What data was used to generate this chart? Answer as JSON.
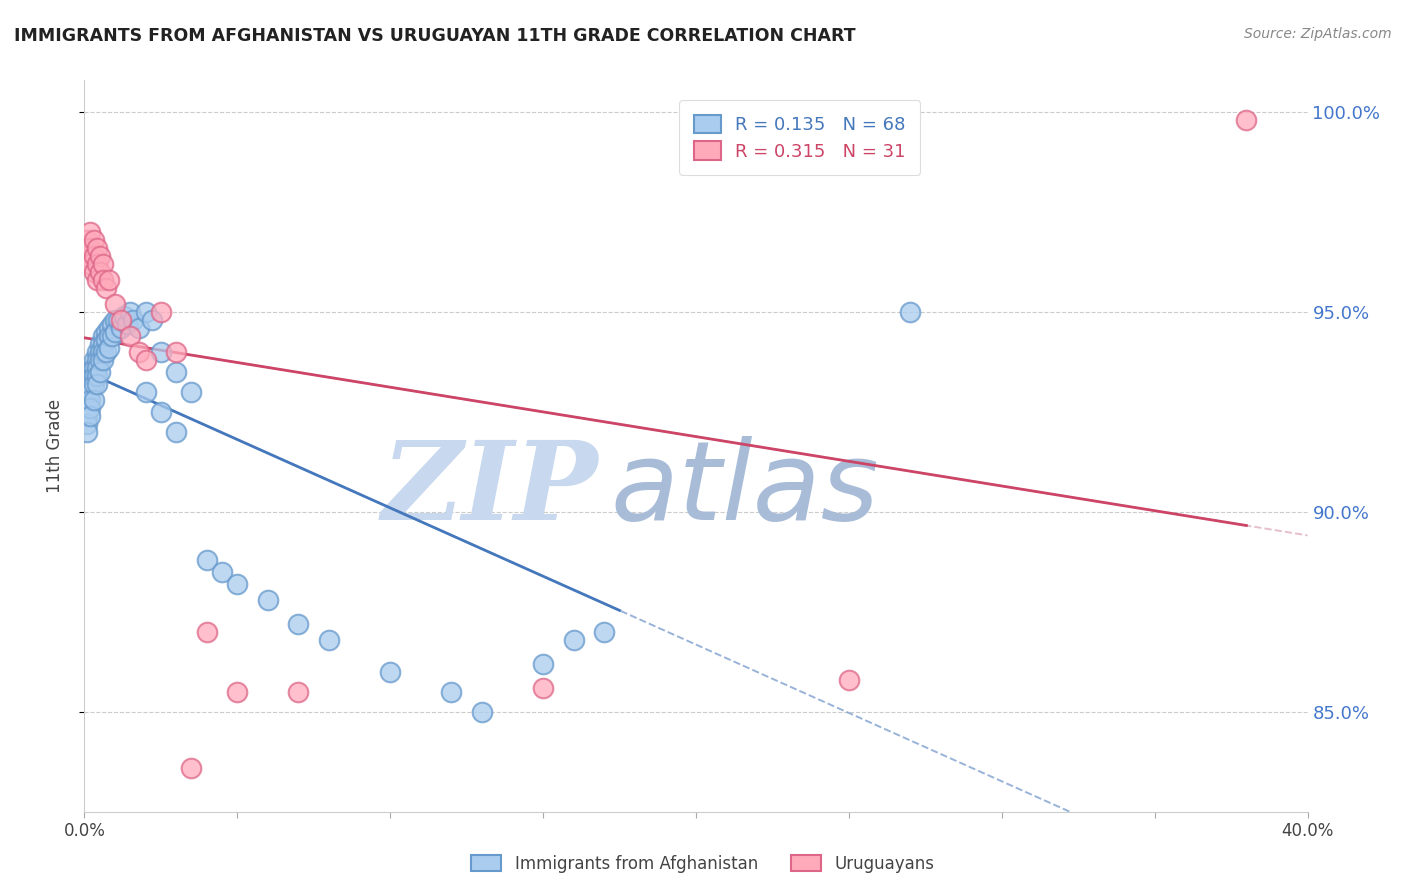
{
  "title": "IMMIGRANTS FROM AFGHANISTAN VS URUGUAYAN 11TH GRADE CORRELATION CHART",
  "source": "Source: ZipAtlas.com",
  "ylabel": "11th Grade",
  "x_min": 0.0,
  "x_max": 0.4,
  "y_min": 0.825,
  "y_max": 1.008,
  "yticks": [
    0.85,
    0.9,
    0.95,
    1.0
  ],
  "ytick_labels": [
    "85.0%",
    "90.0%",
    "95.0%",
    "100.0%"
  ],
  "xtick_positions": [
    0.0,
    0.05,
    0.1,
    0.15,
    0.2,
    0.25,
    0.3,
    0.35,
    0.4
  ],
  "xtick_labels": [
    "0.0%",
    "",
    "",
    "",
    "",
    "",
    "",
    "",
    "40.0%"
  ],
  "blue_color": "#6699cc",
  "blue_face": "#aaccee",
  "pink_color": "#dd6688",
  "pink_face": "#ffaabb",
  "blue_R": 0.135,
  "blue_N": 68,
  "pink_R": 0.315,
  "pink_N": 31,
  "watermark_zip": "ZIP",
  "watermark_atlas": "atlas",
  "blue_line_color": "#4477bb",
  "pink_line_color": "#cc4466",
  "blue_dash_color": "#7799cc",
  "pink_dash_color": "#ddaabb",
  "blue_x": [
    0.001,
    0.001,
    0.001,
    0.001,
    0.001,
    0.001,
    0.002,
    0.002,
    0.002,
    0.002,
    0.002,
    0.002,
    0.003,
    0.003,
    0.003,
    0.003,
    0.003,
    0.004,
    0.004,
    0.004,
    0.004,
    0.004,
    0.005,
    0.005,
    0.005,
    0.005,
    0.006,
    0.006,
    0.006,
    0.006,
    0.007,
    0.007,
    0.007,
    0.008,
    0.008,
    0.008,
    0.009,
    0.009,
    0.01,
    0.01,
    0.011,
    0.012,
    0.013,
    0.014,
    0.015,
    0.016,
    0.018,
    0.02,
    0.022,
    0.025,
    0.03,
    0.035,
    0.04,
    0.045,
    0.05,
    0.06,
    0.07,
    0.08,
    0.1,
    0.12,
    0.13,
    0.15,
    0.16,
    0.17,
    0.02,
    0.025,
    0.03,
    0.27
  ],
  "blue_y": [
    0.93,
    0.928,
    0.926,
    0.924,
    0.922,
    0.92,
    0.935,
    0.932,
    0.93,
    0.928,
    0.926,
    0.924,
    0.938,
    0.936,
    0.934,
    0.932,
    0.928,
    0.94,
    0.938,
    0.936,
    0.934,
    0.932,
    0.942,
    0.94,
    0.938,
    0.935,
    0.944,
    0.942,
    0.94,
    0.938,
    0.945,
    0.943,
    0.94,
    0.946,
    0.944,
    0.941,
    0.947,
    0.944,
    0.948,
    0.945,
    0.948,
    0.946,
    0.949,
    0.947,
    0.95,
    0.948,
    0.946,
    0.95,
    0.948,
    0.94,
    0.935,
    0.93,
    0.888,
    0.885,
    0.882,
    0.878,
    0.872,
    0.868,
    0.86,
    0.855,
    0.85,
    0.862,
    0.868,
    0.87,
    0.93,
    0.925,
    0.92,
    0.95
  ],
  "pink_x": [
    0.001,
    0.001,
    0.002,
    0.002,
    0.002,
    0.003,
    0.003,
    0.003,
    0.004,
    0.004,
    0.004,
    0.005,
    0.005,
    0.006,
    0.006,
    0.007,
    0.008,
    0.01,
    0.012,
    0.015,
    0.018,
    0.02,
    0.025,
    0.03,
    0.035,
    0.04,
    0.05,
    0.07,
    0.15,
    0.25,
    0.38
  ],
  "pink_y": [
    0.968,
    0.964,
    0.97,
    0.966,
    0.962,
    0.968,
    0.964,
    0.96,
    0.966,
    0.962,
    0.958,
    0.964,
    0.96,
    0.962,
    0.958,
    0.956,
    0.958,
    0.952,
    0.948,
    0.944,
    0.94,
    0.938,
    0.95,
    0.94,
    0.836,
    0.87,
    0.855,
    0.855,
    0.856,
    0.858,
    0.998
  ]
}
